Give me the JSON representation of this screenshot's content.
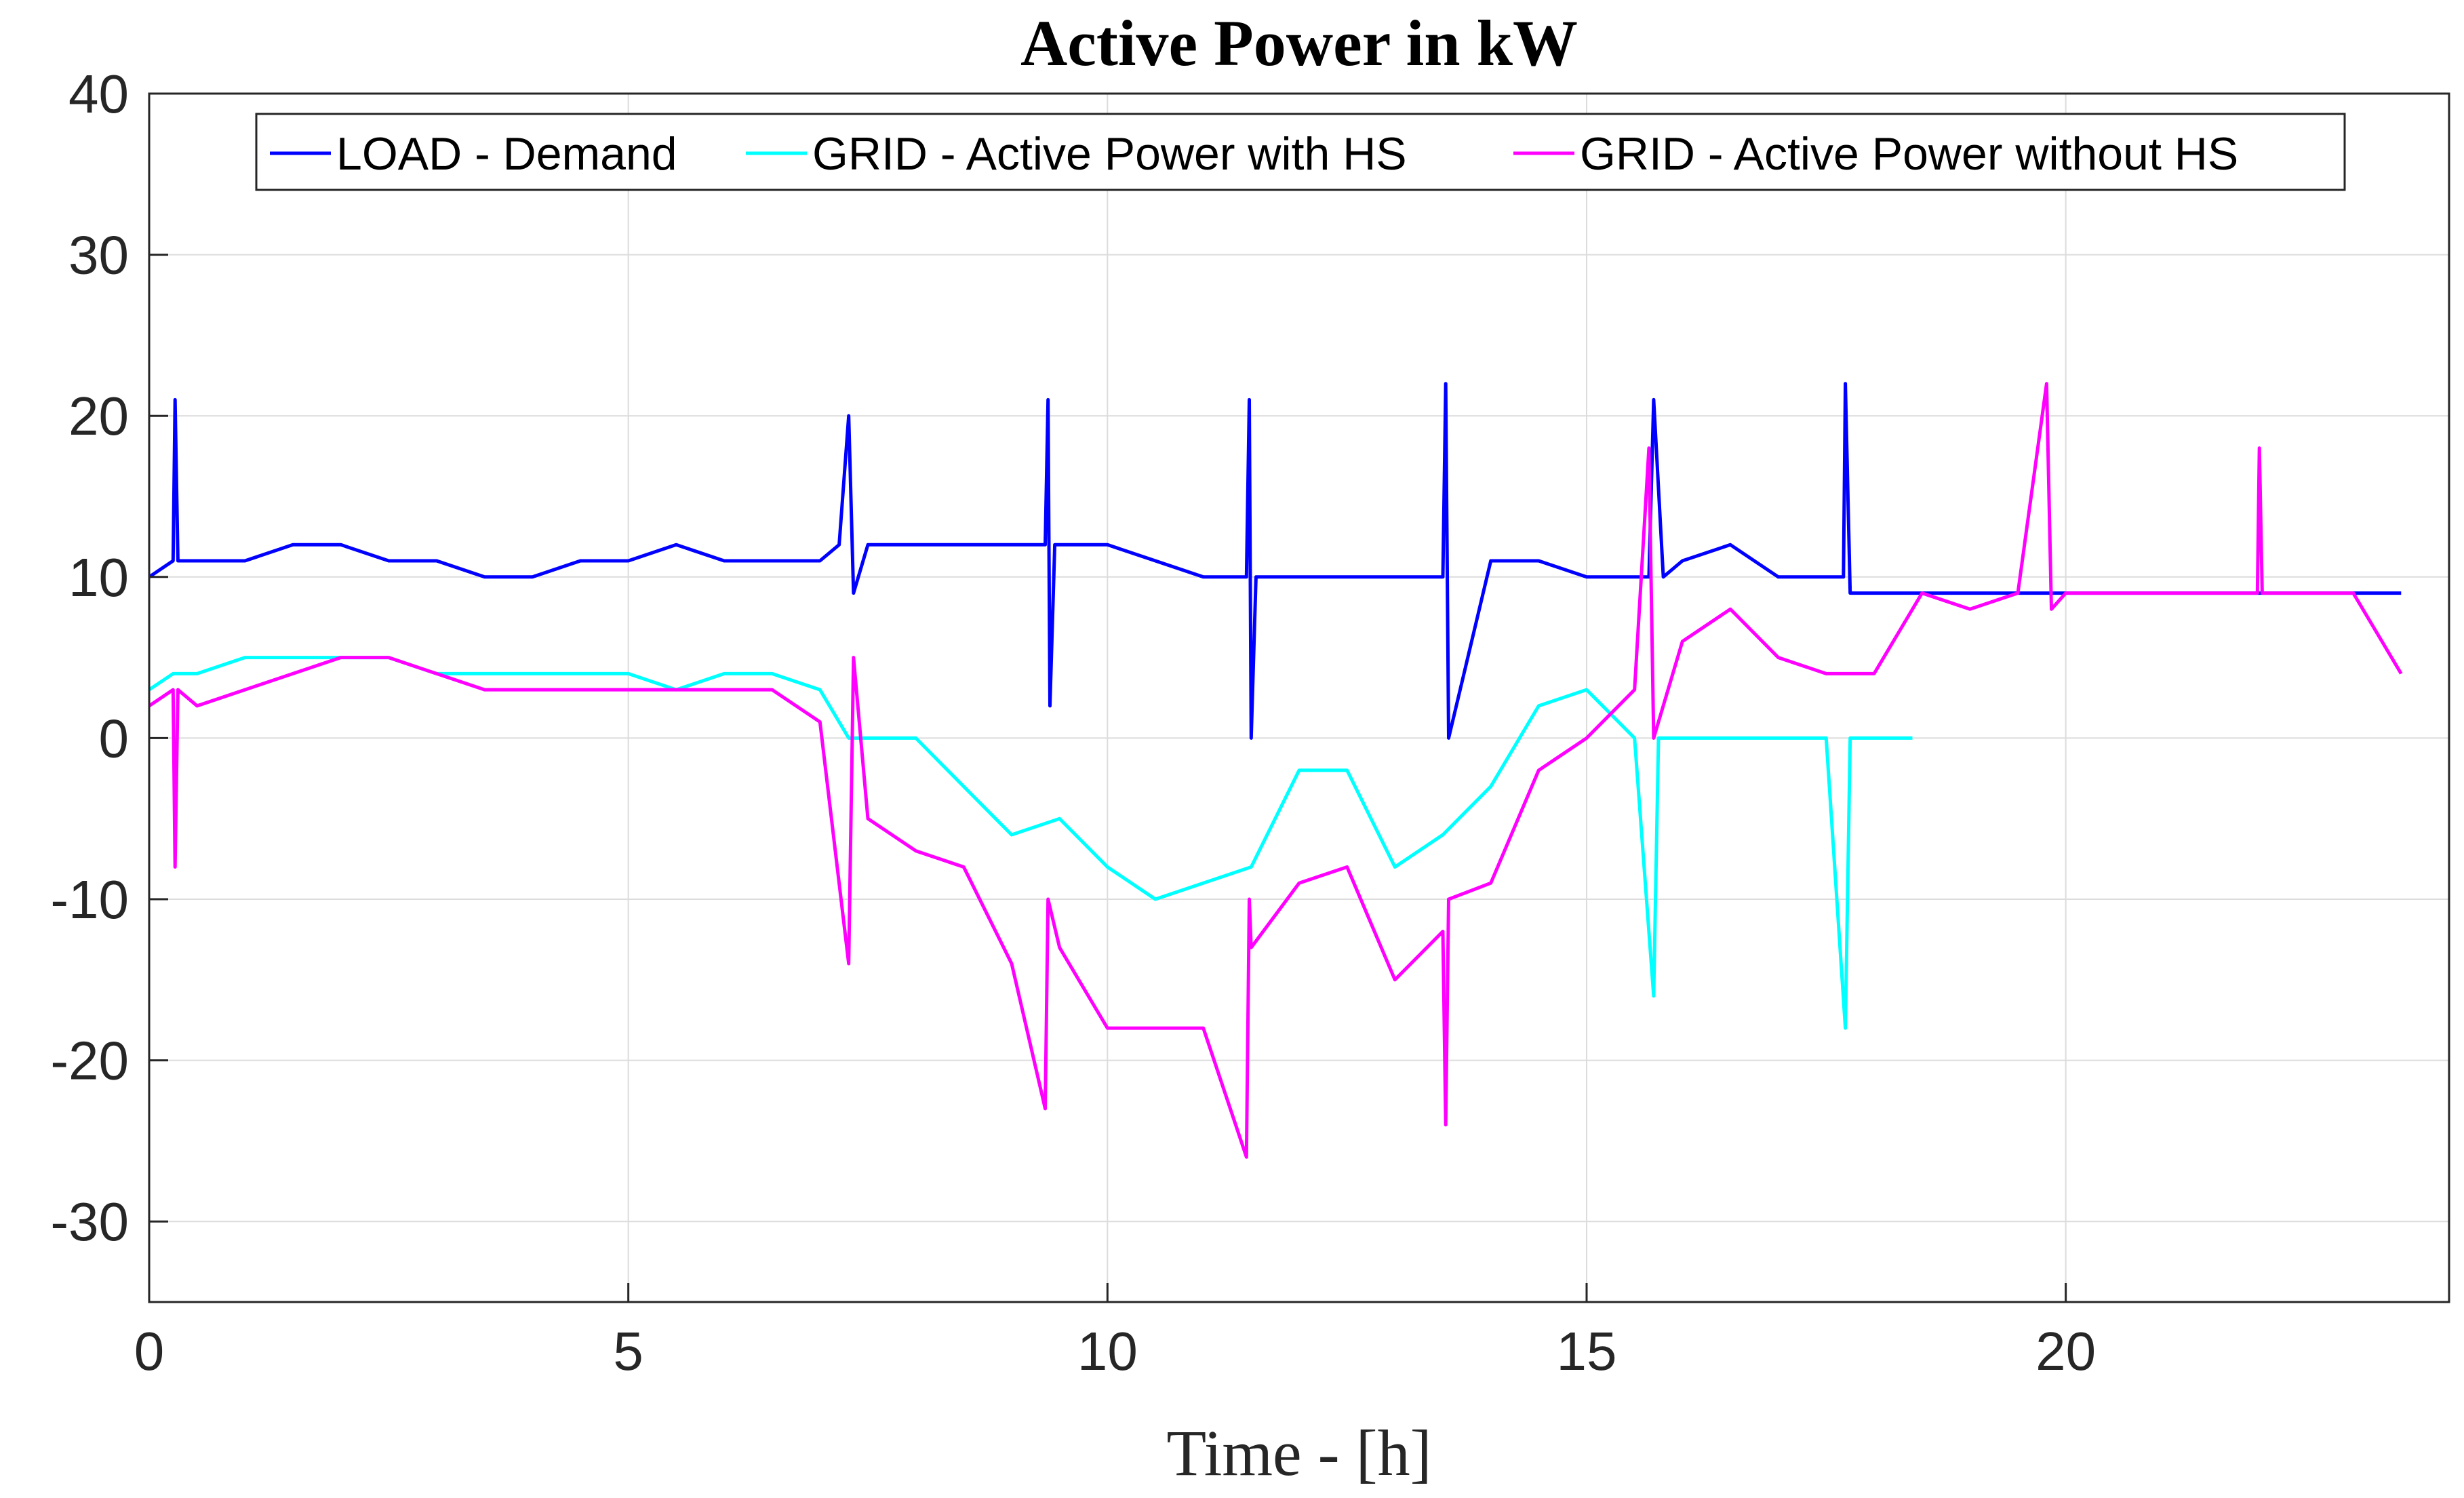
{
  "chart_data": {
    "type": "line",
    "title": "Active Power in kW",
    "xlabel": "Time - [h]",
    "ylabel": "",
    "xlim": [
      0,
      24
    ],
    "ylim": [
      -35,
      40
    ],
    "xticks": [
      0,
      5,
      10,
      15,
      20
    ],
    "yticks": [
      40,
      30,
      20,
      10,
      0,
      -10,
      -20,
      -30
    ],
    "xtick_labels": [
      "0",
      "5",
      "10",
      "15",
      "20"
    ],
    "ytick_labels": [
      "40",
      "30",
      "20",
      "10",
      "0",
      "-10",
      "-20",
      "-30"
    ],
    "grid": true,
    "legend_position": "top",
    "series": [
      {
        "name": "LOAD - Demand",
        "color": "#0000ff",
        "x": [
          0,
          0.25,
          0.27,
          0.3,
          0.5,
          1,
          1.5,
          2,
          2.5,
          3,
          3.5,
          4,
          4.5,
          5,
          5.5,
          6,
          6.5,
          7,
          7.2,
          7.3,
          7.35,
          7.5,
          8,
          8.5,
          9,
          9.35,
          9.38,
          9.4,
          9.45,
          9.5,
          10,
          10.5,
          11,
          11.45,
          11.48,
          11.5,
          11.55,
          12,
          12.5,
          13,
          13.5,
          13.53,
          13.56,
          14,
          14.5,
          15,
          15.5,
          15.65,
          15.7,
          15.8,
          16,
          16.5,
          17,
          17.5,
          17.68,
          17.7,
          17.75,
          18,
          18.5,
          19,
          19.5,
          20,
          20.5,
          21,
          21.5,
          22,
          22.5,
          23,
          23.5
        ],
        "values": [
          10,
          11,
          21,
          11,
          11,
          11,
          12,
          12,
          11,
          11,
          10,
          10,
          11,
          11,
          12,
          11,
          11,
          11,
          12,
          20,
          9,
          12,
          12,
          12,
          12,
          12,
          21,
          2,
          12,
          12,
          12,
          11,
          10,
          10,
          21,
          0,
          10,
          10,
          10,
          10,
          10,
          22,
          0,
          11,
          11,
          10,
          10,
          10,
          21,
          10,
          11,
          12,
          10,
          10,
          10,
          22,
          9,
          9,
          9,
          9,
          9,
          9,
          9,
          9,
          9,
          9,
          9,
          9,
          9
        ]
      },
      {
        "name": "GRID - Active Power with HS",
        "color": "#00ffff",
        "x": [
          0,
          0.25,
          0.5,
          1,
          1.5,
          2,
          2.5,
          3,
          3.5,
          4,
          4.5,
          5,
          5.5,
          6,
          6.5,
          7,
          7.3,
          7.4,
          7.5,
          8,
          8.5,
          9,
          9.5,
          10,
          10.5,
          11,
          11.5,
          12,
          12.5,
          13,
          13.5,
          14,
          14.5,
          15,
          15.5,
          15.7,
          15.75,
          16,
          16.5,
          17,
          17.5,
          17.7,
          17.75,
          18,
          18.4
        ],
        "values": [
          3,
          4,
          4,
          5,
          5,
          5,
          5,
          4,
          4,
          4,
          4,
          4,
          3,
          4,
          4,
          3,
          0,
          0,
          0,
          0,
          -3,
          -6,
          -5,
          -8,
          -10,
          -9,
          -8,
          -2,
          -2,
          -8,
          -6,
          -3,
          2,
          3,
          0,
          -16,
          0,
          0,
          0,
          0,
          0,
          -18,
          0,
          0,
          0
        ]
      },
      {
        "name": "GRID - Active Power without HS",
        "color": "#ff00ff",
        "x": [
          0,
          0.25,
          0.27,
          0.3,
          0.5,
          1,
          1.5,
          2,
          2.5,
          3,
          3.5,
          4,
          4.5,
          5,
          5.5,
          6,
          6.5,
          7,
          7.3,
          7.35,
          7.5,
          8,
          8.5,
          9,
          9.35,
          9.38,
          9.5,
          10,
          10.5,
          11,
          11.45,
          11.48,
          11.5,
          12,
          12.5,
          13,
          13.5,
          13.53,
          13.56,
          14,
          14.5,
          15,
          15.5,
          15.65,
          15.7,
          16,
          16.5,
          17,
          17.5,
          17.7,
          18,
          18.5,
          19,
          19.5,
          19.8,
          19.85,
          20,
          20.5,
          21,
          21.5,
          22,
          22.02,
          22.05,
          22.5,
          23,
          23.5
        ],
        "values": [
          2,
          3,
          -8,
          3,
          2,
          3,
          4,
          5,
          5,
          4,
          3,
          3,
          3,
          3,
          3,
          3,
          3,
          1,
          -14,
          5,
          -5,
          -7,
          -8,
          -14,
          -23,
          -10,
          -13,
          -18,
          -18,
          -18,
          -26,
          -10,
          -13,
          -9,
          -8,
          -15,
          -12,
          -24,
          -10,
          -9,
          -2,
          0,
          3,
          18,
          0,
          6,
          8,
          5,
          4,
          4,
          4,
          9,
          8,
          9,
          22,
          8,
          9,
          9,
          9,
          9,
          9,
          18,
          9,
          9,
          9,
          4
        ]
      }
    ]
  }
}
